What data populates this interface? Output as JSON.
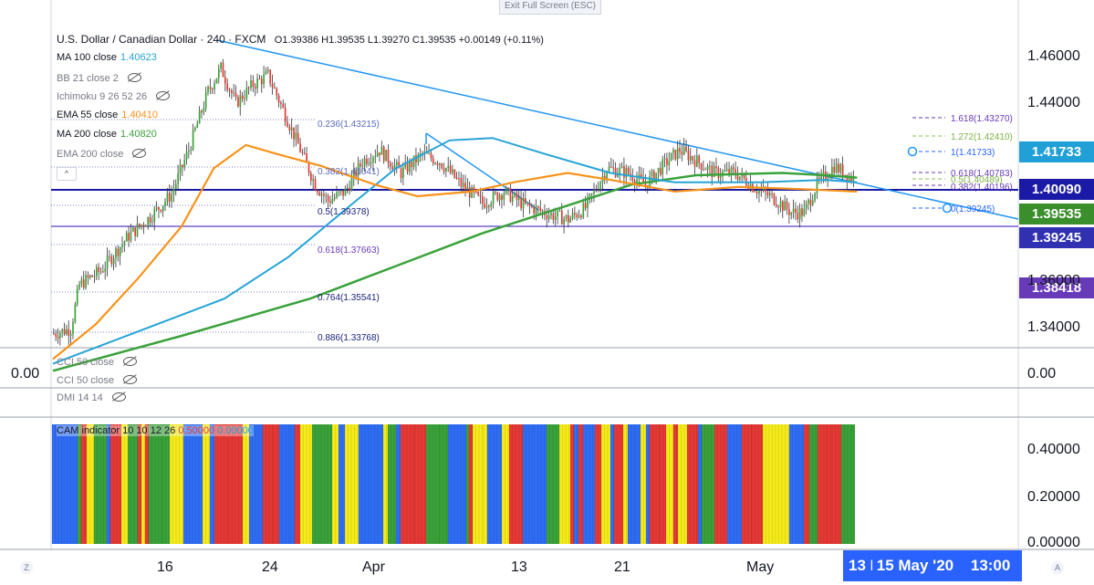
{
  "toolbar": {
    "exit_fullscreen": "Exit Full Screen (ESC)"
  },
  "chart_title": {
    "symbol": "U.S. Dollar / Canadian Dollar · 240 · FXCM",
    "ohlc": "O1.39386 H1.39535 L1.39270 C1.39535 +0.00149 (+0.11%)"
  },
  "legend": [
    {
      "name": "MA 100 close",
      "value": "1.40623",
      "color": "#26a4d6"
    },
    {
      "name": "BB 21 close 2",
      "value": "",
      "color": "#787b86",
      "hidden": true
    },
    {
      "name": "Ichimoku 9 26 52 26",
      "value": "",
      "color": "#787b86",
      "hidden": true
    },
    {
      "name": "EMA 55 close",
      "value": "1.40410",
      "color": "#f7931a"
    },
    {
      "name": "MA 200 close",
      "value": "1.40820",
      "color": "#3aa23a"
    },
    {
      "name": "EMA 200 close",
      "value": "",
      "color": "#787b86",
      "hidden": true
    }
  ],
  "collapse_label": "^",
  "fib_left": [
    {
      "label": "0.236(1.43215)"
    },
    {
      "label": "0.382(1.41041)"
    },
    {
      "label": "0.5(1.39378)"
    },
    {
      "label": "0.618(1.37663)"
    },
    {
      "label": "0.764(1.35541)"
    },
    {
      "label": "0.886(1.33768)"
    }
  ],
  "fib_right": [
    {
      "label": "1.618(1.43270)",
      "color": "#673ab7"
    },
    {
      "label": "1.272(1.42410)",
      "color": "#8bc34a"
    },
    {
      "label": "1(1.41733)",
      "color": "#2962ff"
    },
    {
      "label": "0.618(1.40783)",
      "color": "#673ab7"
    },
    {
      "label": "0.5(1.40489)",
      "color": "#8bc34a"
    },
    {
      "label": "0.382(1.40196)",
      "color": "#673ab7"
    },
    {
      "label": "0(1.39245)",
      "color": "#2962ff"
    }
  ],
  "price_tags": [
    {
      "label": "1.41733",
      "color": "#21a0d8"
    },
    {
      "label": "1.40090",
      "color": "#1a1aa6"
    },
    {
      "label": "1.39535",
      "color": "#3a8f2c"
    },
    {
      "label": "1.39245",
      "color": "#3030b0"
    },
    {
      "label": "1.38418",
      "color": "#673ab7"
    }
  ],
  "price_axis": [
    "1.46000",
    "1.44000",
    "1.42000",
    "1.36000",
    "1.34000"
  ],
  "cci_pane": {
    "label1": "CCI 50 close",
    "label2": "CCI 50 close",
    "left_value": "0.00",
    "right_value": "0.00"
  },
  "dmi_pane": {
    "label": "DMI 14 14"
  },
  "cam_pane": {
    "label": "CAM indicator 10 10 12 26",
    "value1": "0.50000",
    "value2": "0.00000",
    "axis": [
      "0.40000",
      "0.20000",
      "0.00000"
    ]
  },
  "time_axis": [
    "16",
    "24",
    "Apr",
    "13",
    "21",
    "May"
  ],
  "crosshair_time": "13 May '20",
  "crosshair_date": "15 May '20",
  "crosshair_clock": "13:00",
  "corner_left": "Z",
  "corner_right": "A",
  "colors": {
    "up": "#3aa23a",
    "down": "#e53935",
    "ema55": "#f7931a",
    "ma100": "#26a4d6",
    "ma200": "#3aa23a",
    "trendline": "#2196f3",
    "hline_primary": "#1a1aa6",
    "hline_secondary": "#5b3fc4"
  },
  "chart_data": {
    "type": "candlestick",
    "y_range": [
      1.328,
      1.475
    ],
    "ma_lines": {
      "ema55": [
        [
          0,
          1.33
        ],
        [
          20,
          1.345
        ],
        [
          40,
          1.365
        ],
        [
          60,
          1.387
        ],
        [
          75,
          1.412
        ],
        [
          90,
          1.422
        ],
        [
          105,
          1.418
        ],
        [
          125,
          1.413
        ],
        [
          150,
          1.405
        ],
        [
          170,
          1.4
        ],
        [
          195,
          1.402
        ],
        [
          215,
          1.406
        ],
        [
          240,
          1.41
        ],
        [
          260,
          1.407
        ],
        [
          290,
          1.402
        ],
        [
          320,
          1.404
        ],
        [
          350,
          1.403
        ],
        [
          375,
          1.402
        ]
      ],
      "ma100": [
        [
          0,
          1.328
        ],
        [
          40,
          1.342
        ],
        [
          80,
          1.356
        ],
        [
          110,
          1.374
        ],
        [
          140,
          1.397
        ],
        [
          160,
          1.412
        ],
        [
          185,
          1.424
        ],
        [
          205,
          1.425
        ],
        [
          230,
          1.418
        ],
        [
          260,
          1.41
        ],
        [
          290,
          1.406
        ],
        [
          330,
          1.406
        ],
        [
          360,
          1.407
        ],
        [
          375,
          1.406
        ]
      ],
      "ma200": [
        [
          0,
          1.325
        ],
        [
          60,
          1.34
        ],
        [
          120,
          1.356
        ],
        [
          160,
          1.37
        ],
        [
          200,
          1.384
        ],
        [
          240,
          1.396
        ],
        [
          270,
          1.405
        ],
        [
          300,
          1.409
        ],
        [
          340,
          1.41
        ],
        [
          360,
          1.409
        ],
        [
          375,
          1.408
        ]
      ]
    },
    "candles": []
  }
}
